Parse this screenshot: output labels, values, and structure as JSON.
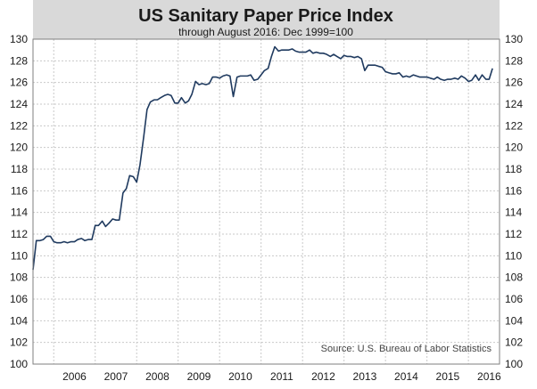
{
  "chart_data": {
    "type": "line",
    "title": "US Sanitary Paper Price Index",
    "subtitle": "through August 2016: Dec 1999=100",
    "source": "Source: U.S. Bureau of Labor Statistics",
    "xlabel": "",
    "ylabel": "",
    "xlim": [
      2005.5,
      2016.75
    ],
    "ylim": [
      100,
      130
    ],
    "y_ticks": [
      100,
      102,
      104,
      106,
      108,
      110,
      112,
      114,
      116,
      118,
      120,
      122,
      124,
      126,
      128,
      130
    ],
    "x_ticks": [
      2006,
      2007,
      2008,
      2009,
      2010,
      2011,
      2012,
      2013,
      2014,
      2015,
      2016
    ],
    "y_axis_both_sides": true,
    "grid": true,
    "line_color": "#1f3a5f",
    "series": [
      {
        "x": [
          2005.5,
          2005.58,
          2005.67,
          2005.75,
          2005.83,
          2005.92,
          2006.0,
          2006.08,
          2006.17,
          2006.25,
          2006.33,
          2006.42,
          2006.5,
          2006.58,
          2006.67,
          2006.75,
          2006.83,
          2006.92,
          2007.0,
          2007.08,
          2007.17,
          2007.25,
          2007.33,
          2007.42,
          2007.5,
          2007.58,
          2007.67,
          2007.75,
          2007.83,
          2007.92,
          2008.0,
          2008.08,
          2008.17,
          2008.25,
          2008.33,
          2008.42,
          2008.5,
          2008.58,
          2008.67,
          2008.75,
          2008.83,
          2008.92,
          2009.0,
          2009.08,
          2009.17,
          2009.25,
          2009.33,
          2009.42,
          2009.5,
          2009.58,
          2009.67,
          2009.75,
          2009.83,
          2009.92,
          2010.0,
          2010.08,
          2010.17,
          2010.25,
          2010.33,
          2010.42,
          2010.5,
          2010.58,
          2010.67,
          2010.75,
          2010.83,
          2010.92,
          2011.0,
          2011.08,
          2011.17,
          2011.25,
          2011.33,
          2011.42,
          2011.5,
          2011.58,
          2011.67,
          2011.75,
          2011.83,
          2011.92,
          2012.0,
          2012.08,
          2012.17,
          2012.25,
          2012.33,
          2012.42,
          2012.5,
          2012.58,
          2012.67,
          2012.75,
          2012.83,
          2012.92,
          2013.0,
          2013.08,
          2013.17,
          2013.25,
          2013.33,
          2013.42,
          2013.5,
          2013.58,
          2013.67,
          2013.75,
          2013.83,
          2013.92,
          2014.0,
          2014.08,
          2014.17,
          2014.25,
          2014.33,
          2014.42,
          2014.5,
          2014.58,
          2014.67,
          2014.75,
          2014.83,
          2014.92,
          2015.0,
          2015.08,
          2015.17,
          2015.25,
          2015.33,
          2015.42,
          2015.5,
          2015.58,
          2015.67,
          2015.75,
          2015.83,
          2015.92,
          2016.0,
          2016.08,
          2016.17,
          2016.25,
          2016.33,
          2016.42,
          2016.5,
          2016.58
        ],
        "y": [
          108.7,
          111.4,
          111.4,
          111.5,
          111.8,
          111.8,
          111.3,
          111.2,
          111.2,
          111.3,
          111.2,
          111.3,
          111.3,
          111.5,
          111.6,
          111.4,
          111.5,
          111.5,
          112.8,
          112.8,
          113.2,
          112.7,
          113.0,
          113.4,
          113.3,
          113.3,
          115.8,
          116.2,
          117.4,
          117.3,
          116.8,
          118.4,
          121.0,
          123.5,
          124.2,
          124.4,
          124.4,
          124.6,
          124.8,
          124.9,
          124.8,
          124.1,
          124.1,
          124.6,
          124.1,
          124.3,
          124.9,
          126.1,
          125.8,
          125.9,
          125.8,
          125.9,
          126.5,
          126.5,
          126.4,
          126.6,
          126.7,
          126.6,
          124.7,
          126.5,
          126.6,
          126.6,
          126.6,
          126.7,
          126.2,
          126.3,
          126.7,
          127.1,
          127.3,
          128.4,
          129.3,
          128.9,
          129.0,
          129.0,
          129.0,
          129.1,
          128.9,
          128.8,
          128.8,
          128.8,
          129.0,
          128.7,
          128.8,
          128.7,
          128.7,
          128.6,
          128.4,
          128.6,
          128.4,
          128.2,
          128.5,
          128.4,
          128.4,
          128.3,
          128.4,
          128.2,
          127.1,
          127.6,
          127.6,
          127.6,
          127.5,
          127.4,
          127.0,
          126.9,
          126.8,
          126.8,
          126.9,
          126.5,
          126.6,
          126.5,
          126.7,
          126.6,
          126.5,
          126.5,
          126.5,
          126.4,
          126.3,
          126.5,
          126.3,
          126.2,
          126.3,
          126.3,
          126.4,
          126.3,
          126.6,
          126.4,
          126.1,
          126.2,
          126.7,
          126.2,
          126.7,
          126.3,
          126.3,
          127.3
        ]
      }
    ]
  }
}
